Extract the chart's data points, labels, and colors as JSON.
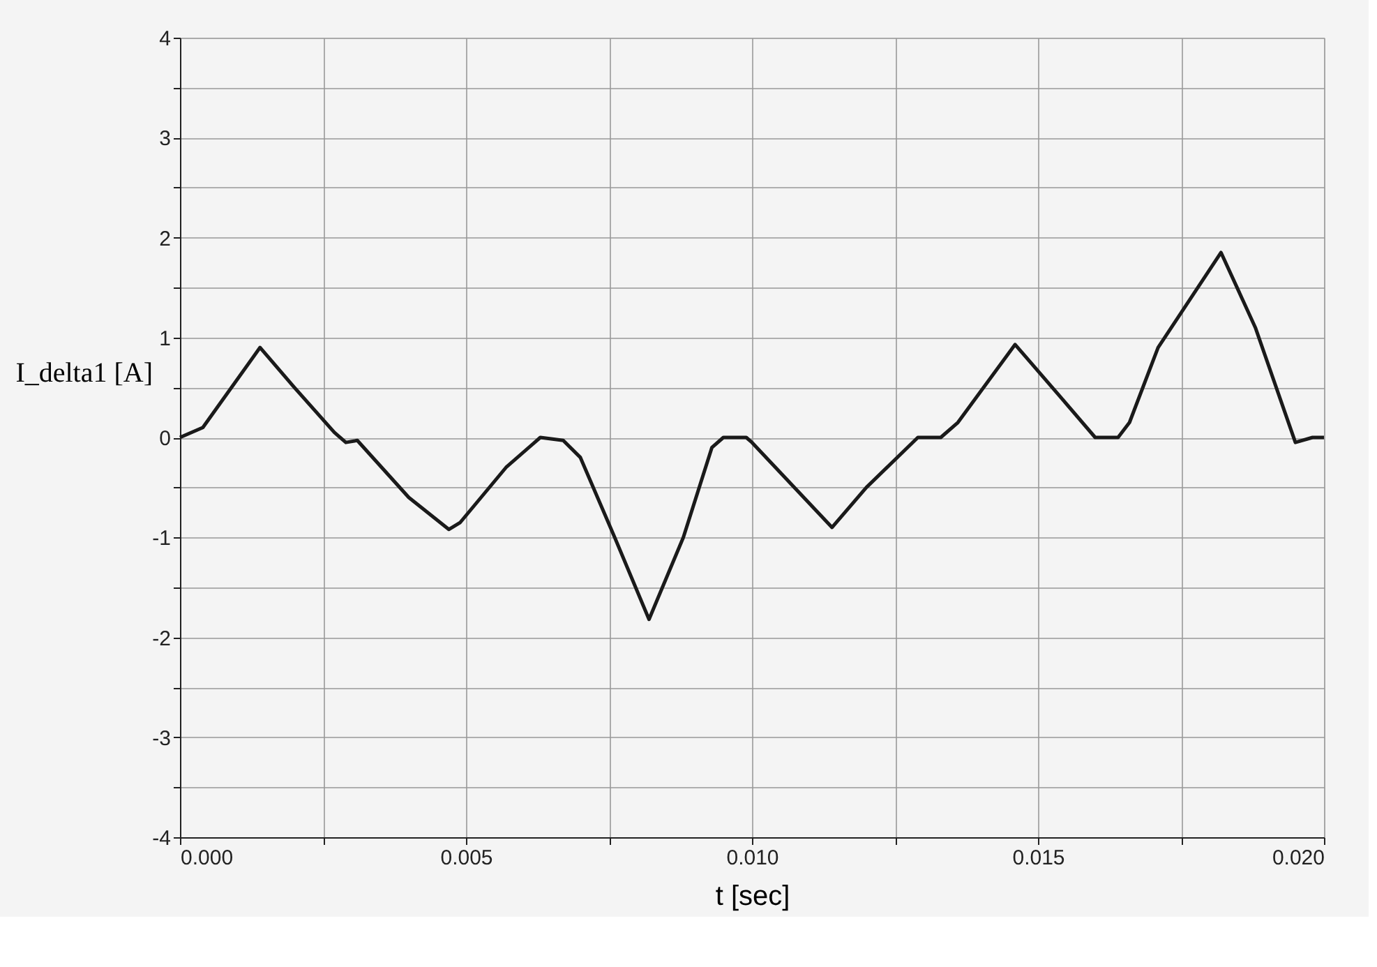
{
  "chart_data": {
    "type": "line",
    "xlabel": "t [sec]",
    "ylabel": "I_delta1 [A]",
    "xlim": [
      0,
      0.02
    ],
    "ylim": [
      -4,
      4
    ],
    "xticks": [
      {
        "value": 0,
        "label": "0.000"
      },
      {
        "value": 0.0025,
        "label": null
      },
      {
        "value": 0.005,
        "label": "0.005"
      },
      {
        "value": 0.0075,
        "label": null
      },
      {
        "value": 0.01,
        "label": "0.010"
      },
      {
        "value": 0.0125,
        "label": null
      },
      {
        "value": 0.015,
        "label": "0.015"
      },
      {
        "value": 0.0175,
        "label": null
      },
      {
        "value": 0.02,
        "label": "0.020"
      }
    ],
    "yticks": [
      -4,
      {
        "value": -3.5,
        "label": null
      },
      -3,
      {
        "value": -2.5,
        "label": null
      },
      -2,
      {
        "value": -1.5,
        "label": null
      },
      -1,
      {
        "value": -0.5,
        "label": null
      },
      0,
      {
        "value": 0.5,
        "label": null
      },
      1,
      {
        "value": 1.5,
        "label": null
      },
      2,
      {
        "value": 2.5,
        "label": null
      },
      3,
      {
        "value": 3.5,
        "label": null
      },
      4
    ],
    "grid": true,
    "marker": "none",
    "line_style": "solid",
    "series": [
      {
        "color": "#1a1a1a",
        "x": [
          0,
          0.0004,
          0.0014,
          0.002,
          0.0027,
          0.0029,
          0.0031,
          0.004,
          0.0047,
          0.0049,
          0.0057,
          0.0063,
          0.0067,
          0.007,
          0.0076,
          0.0082,
          0.0088,
          0.0093,
          0.0095,
          0.0099,
          0.01,
          0.0114,
          0.012,
          0.0129,
          0.0133,
          0.0136,
          0.0146,
          0.0154,
          0.016,
          0.0164,
          0.0166,
          0.0171,
          0.0182,
          0.0188,
          0.0195,
          0.0198,
          0.02
        ],
        "values": [
          0,
          0.1,
          0.9,
          0.5,
          0.05,
          -0.05,
          -0.03,
          -0.6,
          -0.92,
          -0.85,
          -0.3,
          0.0,
          -0.03,
          -0.2,
          -1.0,
          -1.82,
          -1.0,
          -0.1,
          0.0,
          0.0,
          -0.05,
          -0.9,
          -0.5,
          0.0,
          0.0,
          0.15,
          0.93,
          0.4,
          0.0,
          0.0,
          0.15,
          0.9,
          1.85,
          1.1,
          -0.05,
          0.0,
          0.0
        ]
      }
    ]
  }
}
